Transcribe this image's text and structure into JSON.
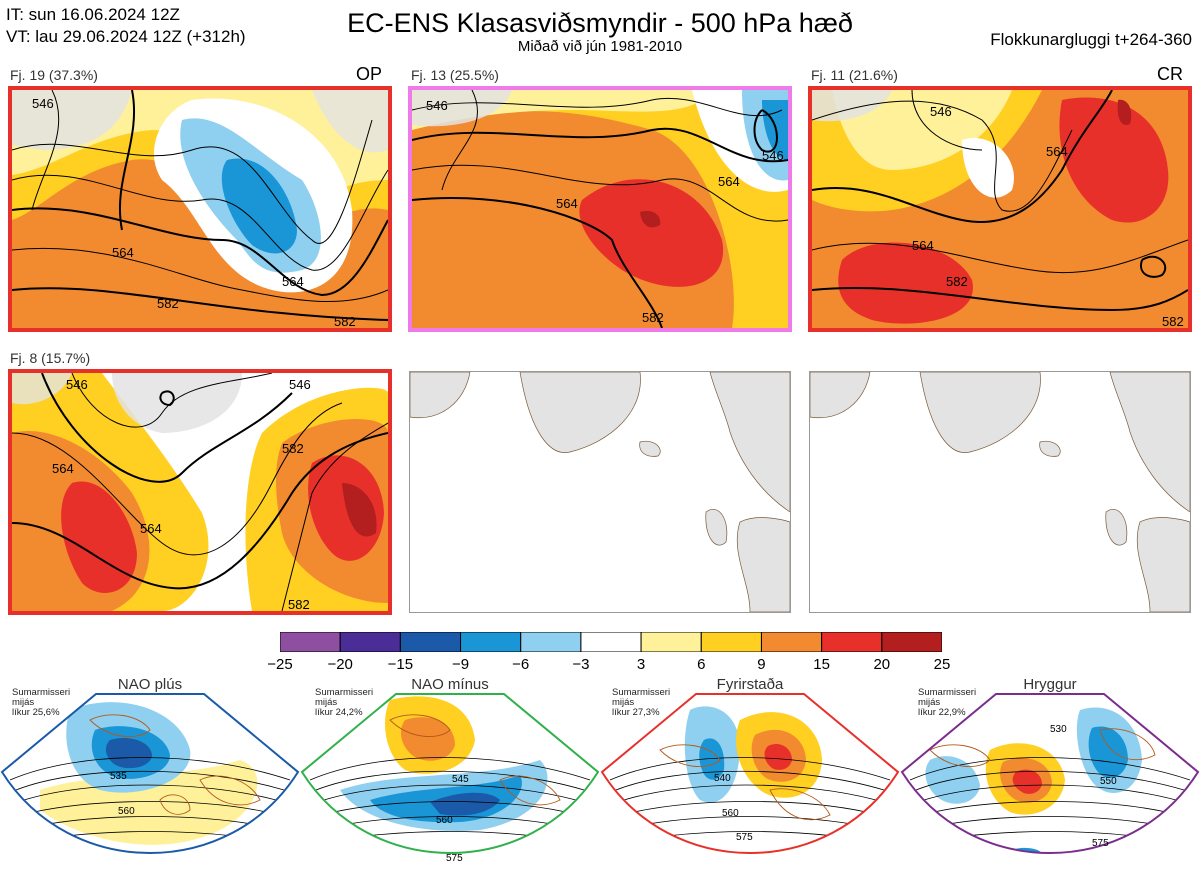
{
  "header": {
    "init_line": "IT: sun 16.06.2024 12Z",
    "valid_line": "VT: lau 29.06.2024 12Z  (+312h)",
    "title": "EC-ENS Klasasviðsmyndir - 500 hPa hæð",
    "subtitle": "Miðað við jún 1981-2010",
    "window": "Flokkunargluggi t+264-360"
  },
  "clusters": [
    {
      "label": "Fj. 19 (37.3%)",
      "tag": "OP",
      "border_color": "#e8302a",
      "contours": [
        "546",
        "564",
        "564",
        "582",
        "582"
      ]
    },
    {
      "label": "Fj. 13 (25.5%)",
      "tag": "",
      "border_color": "#ef7be9",
      "contours": [
        "546",
        "564",
        "564",
        "582",
        "546"
      ]
    },
    {
      "label": "Fj. 11 (21.6%)",
      "tag": "CR",
      "border_color": "#e8302a",
      "contours": [
        "546",
        "564",
        "564",
        "582",
        "582"
      ]
    },
    {
      "label": "Fj. 8 (15.7%)",
      "tag": "",
      "border_color": "#e8302a",
      "contours": [
        "546",
        "546",
        "564",
        "564",
        "582",
        "582"
      ]
    }
  ],
  "colorbar": {
    "ticks": [
      "−25",
      "−20",
      "−15",
      "−9",
      "−6",
      "−3",
      "3",
      "6",
      "9",
      "15",
      "20",
      "25"
    ],
    "colors": [
      "#8e4fa0",
      "#4a2d96",
      "#1a5aa8",
      "#1a96d6",
      "#8fd0f0",
      "#ffffff",
      "#fff19a",
      "#ffcf22",
      "#f28a30",
      "#e8302a",
      "#b31e1e"
    ]
  },
  "regimes": [
    {
      "name": "NAO plús",
      "season": "Sumarmisseri",
      "field": "mijás",
      "prob": "líkur 25,6%",
      "color": "#1a5aa8",
      "contours": [
        "535",
        "560"
      ]
    },
    {
      "name": "NAO mínus",
      "season": "Sumarmisseri",
      "field": "mijás",
      "prob": "líkur 24,2%",
      "color": "#2fb04a",
      "contours": [
        "545",
        "560",
        "575"
      ]
    },
    {
      "name": "Fyrirstaða",
      "season": "Sumarmisseri",
      "field": "mijás",
      "prob": "líkur 27,3%",
      "color": "#e8302a",
      "contours": [
        "540",
        "560",
        "575"
      ]
    },
    {
      "name": "Hryggur",
      "season": "Sumarmisseri",
      "field": "mijás",
      "prob": "líkur 22,9%",
      "color": "#ef7be9",
      "contours": [
        "530",
        "550",
        "575"
      ]
    }
  ],
  "map": {
    "land_color": "#e3e3e3",
    "coast_color": "#7a5a3a",
    "regime_border_colors": [
      "#1a5aa8",
      "#2fb04a",
      "#e8302a",
      "#7b2d8e"
    ]
  }
}
